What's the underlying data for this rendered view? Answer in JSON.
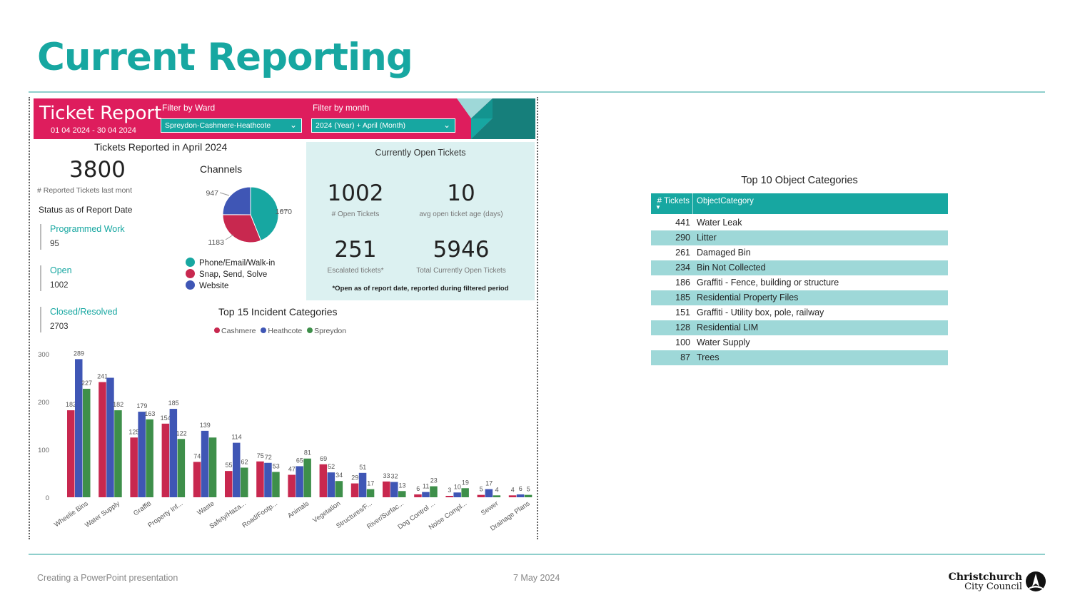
{
  "slide": {
    "title": "Current Reporting",
    "footer_left": "Creating a PowerPoint presentation",
    "footer_date": "7 May 2024",
    "logo_line1": "Christchurch",
    "logo_line2": "City Council"
  },
  "ticket_report": {
    "title": "Ticket Report",
    "date_range": "01 04 2024 - 30 04 2024",
    "filter_ward_label": "Filter by Ward",
    "filter_ward_value": "Spreydon-Cashmere-Heathcote",
    "filter_month_label": "Filter by month",
    "filter_month_value": "2024 (Year) + April (Month)"
  },
  "reported": {
    "title": "Tickets Reported in April 2024",
    "total": "3800",
    "total_caption": "# Reported Tickets last mont",
    "status_title": "Status as of Report Date",
    "status_items": [
      {
        "label": "Programmed Work",
        "value": "95"
      },
      {
        "label": "Open",
        "value": "1002"
      },
      {
        "label": "Closed/Resolved",
        "value": "2703"
      }
    ]
  },
  "channels": {
    "title": "Channels",
    "colors": [
      "#17a7a1",
      "#c8284f",
      "#3f56b5"
    ],
    "legend": [
      "Phone/Email/Walk-in",
      "Snap, Send, Solve",
      "Website"
    ],
    "chart_data": {
      "type": "pie",
      "labels": [
        "Phone/Email/Walk-in",
        "Snap, Send, Solve",
        "Website"
      ],
      "values": [
        1670,
        1183,
        947
      ],
      "value_labels": [
        "1670",
        "1183",
        "947"
      ]
    }
  },
  "open_tickets": {
    "title": "Currently Open Tickets",
    "open": "1002",
    "open_caption": "# Open Tickets",
    "avg_age": "10",
    "avg_age_caption": "avg open ticket age (days)",
    "escalated": "251",
    "escalated_caption": "Escalated tickets*",
    "total_open": "5946",
    "total_open_caption": "Total Currently Open Tickets",
    "note": "*Open as of report date, reported during filtered period"
  },
  "incidents": {
    "title": "Top 15 Incident Categories",
    "series_colors": [
      "#c8284f",
      "#3f56b5",
      "#3e8f4a"
    ],
    "chart_data": {
      "type": "bar",
      "categories": [
        "Wheelie Bins",
        "Water Supply",
        "Graffiti",
        "Property Inf...",
        "Waste",
        "Safety/Haza...",
        "Road/Footp...",
        "Animals",
        "Vegetation",
        "Structures/F...",
        "River/Surfac...",
        "Dog Control ...",
        "Noise Compl...",
        "Sewer",
        "Drainage Plans"
      ],
      "series": [
        {
          "name": "Cashmere",
          "values": [
            182,
            241,
            125,
            154,
            74,
            55,
            75,
            47,
            69,
            29,
            33,
            6,
            3,
            5,
            4
          ]
        },
        {
          "name": "Heathcote",
          "values": [
            289,
            250,
            179,
            185,
            139,
            114,
            72,
            65,
            52,
            51,
            32,
            11,
            10,
            17,
            6
          ]
        },
        {
          "name": "Spreydon",
          "values": [
            227,
            182,
            163,
            122,
            125,
            62,
            53,
            81,
            34,
            17,
            13,
            23,
            19,
            4,
            5
          ]
        }
      ],
      "labels": [
        [
          "182",
          "241",
          "125",
          "154",
          "74",
          "55",
          "75",
          "47",
          "69",
          "29",
          "33",
          "6",
          "3",
          "5",
          "4"
        ],
        [
          "289",
          "",
          "179",
          "185",
          "139",
          "114",
          "72",
          "65",
          "52",
          "51",
          "32",
          "11",
          "10",
          "17",
          "6"
        ],
        [
          "227",
          "182",
          "163",
          "122",
          "",
          "62",
          "53",
          "81",
          "34",
          "17",
          "13",
          "23",
          "19",
          "4",
          "5"
        ]
      ],
      "ylim": [
        0,
        300
      ],
      "yticks": [
        "0",
        "100",
        "200",
        "300"
      ]
    }
  },
  "object_categories": {
    "title": "Top 10 Object Categories",
    "col1": "# Tickets",
    "col2": "ObjectCategory",
    "rows": [
      {
        "count": "441",
        "name": "Water Leak"
      },
      {
        "count": "290",
        "name": "Litter"
      },
      {
        "count": "261",
        "name": "Damaged Bin"
      },
      {
        "count": "234",
        "name": "Bin Not Collected"
      },
      {
        "count": "186",
        "name": "Graffiti - Fence, building or structure"
      },
      {
        "count": "185",
        "name": "Residential Property Files"
      },
      {
        "count": "151",
        "name": "Graffiti - Utility box, pole, railway"
      },
      {
        "count": "128",
        "name": "Residential LIM"
      },
      {
        "count": "100",
        "name": "Water Supply"
      },
      {
        "count": "87",
        "name": "Trees"
      }
    ]
  }
}
